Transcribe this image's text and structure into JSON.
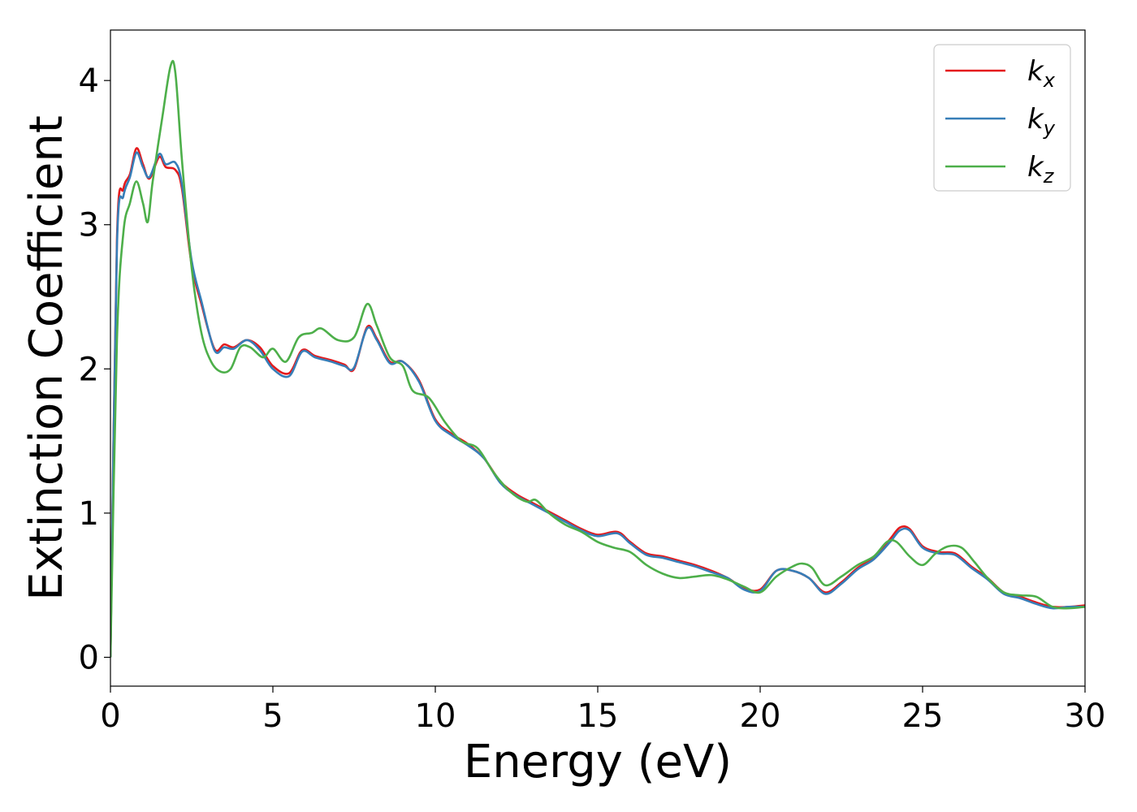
{
  "chart_data": {
    "type": "line",
    "title": "",
    "xlabel": "Energy (eV)",
    "ylabel": "Extinction Coefficient",
    "xlim": [
      0,
      30
    ],
    "ylim": [
      -0.2,
      4.35
    ],
    "xticks": [
      0,
      5,
      10,
      15,
      20,
      25,
      30
    ],
    "xtick_labels": [
      "0",
      "5",
      "10",
      "15",
      "20",
      "25",
      "30"
    ],
    "yticks": [
      0,
      1,
      2,
      3,
      4
    ],
    "ytick_labels": [
      "0",
      "1",
      "2",
      "3",
      "4"
    ],
    "grid": false,
    "legend_position": "top-right",
    "series": [
      {
        "name": "k",
        "subscript": "x",
        "color": "#e41a1c",
        "x": [
          0,
          0.2,
          0.4,
          0.6,
          0.8,
          1.0,
          1.2,
          1.5,
          1.7,
          2.0,
          2.2,
          2.5,
          2.8,
          3.2,
          3.5,
          3.8,
          4.2,
          4.6,
          5.0,
          5.5,
          5.9,
          6.3,
          6.8,
          7.2,
          7.5,
          7.9,
          8.2,
          8.6,
          9.0,
          9.5,
          10.0,
          10.5,
          11.0,
          11.5,
          12.0,
          12.5,
          13.0,
          13.5,
          14.0,
          14.5,
          15.0,
          15.6,
          16.0,
          16.5,
          17.0,
          17.5,
          18.0,
          18.5,
          19.0,
          19.5,
          20.0,
          20.5,
          21.0,
          21.5,
          22.0,
          22.5,
          23.0,
          23.5,
          24.0,
          24.3,
          24.6,
          25.0,
          25.5,
          26.0,
          26.5,
          27.0,
          27.5,
          28.0,
          28.5,
          29.0,
          29.5,
          30.0
        ],
        "y": [
          0.0,
          2.9,
          3.25,
          3.35,
          3.53,
          3.42,
          3.32,
          3.47,
          3.4,
          3.38,
          3.25,
          2.72,
          2.45,
          2.14,
          2.17,
          2.15,
          2.2,
          2.15,
          2.02,
          1.97,
          2.13,
          2.09,
          2.06,
          2.03,
          2.0,
          2.29,
          2.21,
          2.05,
          2.05,
          1.92,
          1.65,
          1.55,
          1.48,
          1.38,
          1.22,
          1.13,
          1.07,
          1.01,
          0.95,
          0.89,
          0.85,
          0.87,
          0.8,
          0.72,
          0.7,
          0.67,
          0.64,
          0.6,
          0.55,
          0.48,
          0.47,
          0.6,
          0.6,
          0.55,
          0.45,
          0.52,
          0.62,
          0.69,
          0.82,
          0.9,
          0.89,
          0.77,
          0.73,
          0.72,
          0.63,
          0.55,
          0.45,
          0.42,
          0.38,
          0.35,
          0.35,
          0.36
        ]
      },
      {
        "name": "k",
        "subscript": "y",
        "color": "#377eb8",
        "x": [
          0,
          0.2,
          0.4,
          0.6,
          0.8,
          1.0,
          1.2,
          1.5,
          1.7,
          2.0,
          2.2,
          2.5,
          2.8,
          3.2,
          3.5,
          3.8,
          4.2,
          4.6,
          5.0,
          5.5,
          5.9,
          6.3,
          6.8,
          7.2,
          7.5,
          7.9,
          8.2,
          8.6,
          9.0,
          9.5,
          10.0,
          10.5,
          11.0,
          11.5,
          12.0,
          12.5,
          13.0,
          13.5,
          14.0,
          14.5,
          15.0,
          15.6,
          16.0,
          16.5,
          17.0,
          17.5,
          18.0,
          18.5,
          19.0,
          19.5,
          20.0,
          20.5,
          21.0,
          21.5,
          22.0,
          22.5,
          23.0,
          23.5,
          24.0,
          24.3,
          24.6,
          25.0,
          25.5,
          26.0,
          26.5,
          27.0,
          27.5,
          28.0,
          28.5,
          29.0,
          29.5,
          30.0
        ],
        "y": [
          0.0,
          2.85,
          3.2,
          3.33,
          3.5,
          3.4,
          3.33,
          3.49,
          3.42,
          3.43,
          3.28,
          2.75,
          2.47,
          2.13,
          2.15,
          2.14,
          2.2,
          2.13,
          2.0,
          1.95,
          2.12,
          2.08,
          2.05,
          2.02,
          2.01,
          2.28,
          2.2,
          2.04,
          2.05,
          1.91,
          1.64,
          1.54,
          1.47,
          1.38,
          1.21,
          1.12,
          1.06,
          1.0,
          0.94,
          0.88,
          0.84,
          0.86,
          0.79,
          0.71,
          0.69,
          0.66,
          0.63,
          0.59,
          0.55,
          0.47,
          0.46,
          0.6,
          0.6,
          0.55,
          0.44,
          0.51,
          0.61,
          0.68,
          0.8,
          0.88,
          0.88,
          0.76,
          0.72,
          0.71,
          0.62,
          0.54,
          0.44,
          0.41,
          0.37,
          0.34,
          0.35,
          0.35
        ]
      },
      {
        "name": "k",
        "subscript": "z",
        "color": "#4daf4a",
        "x": [
          0,
          0.2,
          0.4,
          0.6,
          0.8,
          1.0,
          1.15,
          1.3,
          1.6,
          1.85,
          2.0,
          2.2,
          2.5,
          2.8,
          3.1,
          3.4,
          3.7,
          4.0,
          4.3,
          4.7,
          5.0,
          5.4,
          5.8,
          6.2,
          6.5,
          7.0,
          7.5,
          7.9,
          8.2,
          8.6,
          9.0,
          9.3,
          9.8,
          10.3,
          10.8,
          11.3,
          11.8,
          12.3,
          12.8,
          13.1,
          13.5,
          14.0,
          14.5,
          15.0,
          15.5,
          16.0,
          16.5,
          17.0,
          17.5,
          18.0,
          18.5,
          19.0,
          19.5,
          20.0,
          20.5,
          21.0,
          21.3,
          21.6,
          22.0,
          22.5,
          23.0,
          23.5,
          23.9,
          24.2,
          24.6,
          25.0,
          25.4,
          25.8,
          26.2,
          26.6,
          27.0,
          27.5,
          28.0,
          28.5,
          29.0,
          29.5,
          30.0
        ],
        "y": [
          0.0,
          2.2,
          2.95,
          3.15,
          3.3,
          3.15,
          3.02,
          3.3,
          3.75,
          4.1,
          4.05,
          3.45,
          2.7,
          2.25,
          2.05,
          1.98,
          2.0,
          2.15,
          2.15,
          2.08,
          2.14,
          2.05,
          2.22,
          2.25,
          2.28,
          2.2,
          2.22,
          2.45,
          2.3,
          2.08,
          2.02,
          1.85,
          1.8,
          1.63,
          1.5,
          1.45,
          1.28,
          1.15,
          1.08,
          1.09,
          1.0,
          0.92,
          0.87,
          0.8,
          0.76,
          0.73,
          0.64,
          0.58,
          0.55,
          0.56,
          0.57,
          0.54,
          0.49,
          0.45,
          0.56,
          0.63,
          0.65,
          0.62,
          0.5,
          0.56,
          0.64,
          0.7,
          0.8,
          0.8,
          0.7,
          0.64,
          0.72,
          0.77,
          0.76,
          0.66,
          0.55,
          0.45,
          0.43,
          0.42,
          0.35,
          0.34,
          0.35
        ]
      }
    ]
  }
}
